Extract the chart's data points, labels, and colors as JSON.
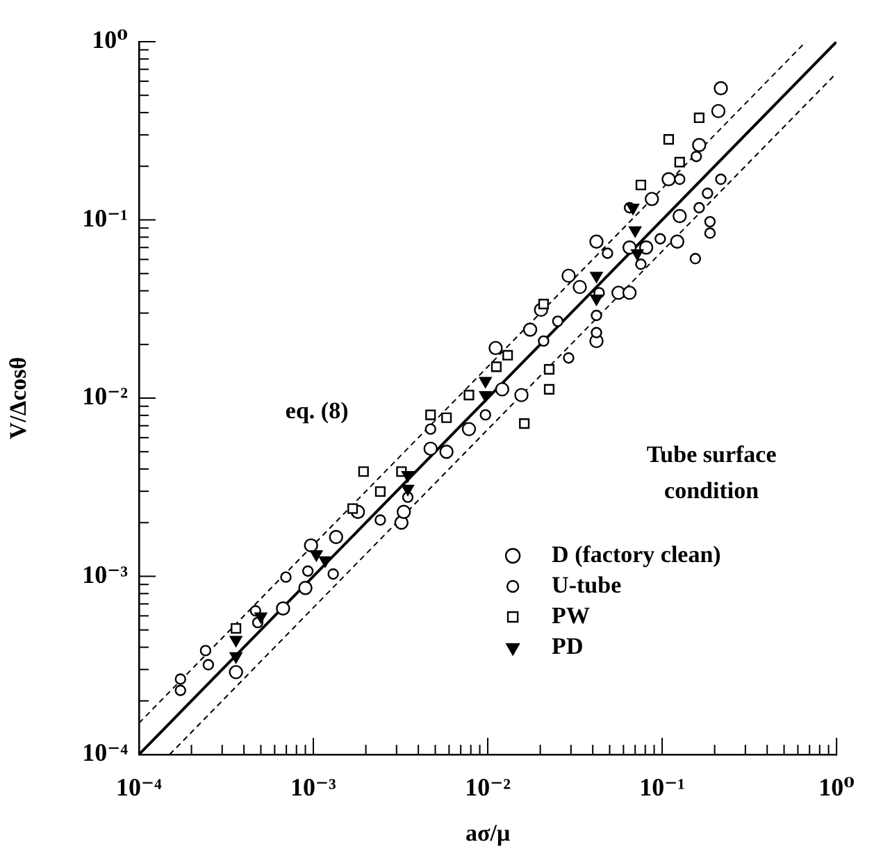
{
  "chart_data": {
    "type": "scatter",
    "xlabel": "aσ/μ",
    "ylabel": "V/Δcosθ",
    "legend_title": "Tube surface condition",
    "legend": "bottom right",
    "log": "xy",
    "grid": false,
    "xlim": [
      0.0001,
      1
    ],
    "ylim": [
      0.0001,
      1
    ],
    "xticks": [
      {
        "value": 0.0001,
        "label": "10⁻⁴"
      },
      {
        "value": 0.0002,
        "label": null
      },
      {
        "value": 0.0003,
        "label": null
      },
      {
        "value": 0.0004,
        "label": null
      },
      {
        "value": 0.0005,
        "label": null
      },
      {
        "value": 0.0006,
        "label": null
      },
      {
        "value": 0.0007,
        "label": null
      },
      {
        "value": 0.0008,
        "label": null
      },
      {
        "value": 0.0009,
        "label": null
      },
      {
        "value": 0.001,
        "label": "10⁻³"
      },
      {
        "value": 0.002,
        "label": null
      },
      {
        "value": 0.003,
        "label": null
      },
      {
        "value": 0.004,
        "label": null
      },
      {
        "value": 0.005,
        "label": null
      },
      {
        "value": 0.006,
        "label": null
      },
      {
        "value": 0.007,
        "label": null
      },
      {
        "value": 0.008,
        "label": null
      },
      {
        "value": 0.009,
        "label": null
      },
      {
        "value": 0.01,
        "label": "10⁻²"
      },
      {
        "value": 0.02,
        "label": null
      },
      {
        "value": 0.03,
        "label": null
      },
      {
        "value": 0.04,
        "label": null
      },
      {
        "value": 0.05,
        "label": null
      },
      {
        "value": 0.06,
        "label": null
      },
      {
        "value": 0.07,
        "label": null
      },
      {
        "value": 0.08,
        "label": null
      },
      {
        "value": 0.09,
        "label": null
      },
      {
        "value": 0.1,
        "label": "10⁻¹"
      },
      {
        "value": 0.2,
        "label": null
      },
      {
        "value": 0.3,
        "label": null
      },
      {
        "value": 0.4,
        "label": null
      },
      {
        "value": 0.5,
        "label": null
      },
      {
        "value": 0.6,
        "label": null
      },
      {
        "value": 0.7,
        "label": null
      },
      {
        "value": 0.8,
        "label": null
      },
      {
        "value": 0.9,
        "label": null
      },
      {
        "value": 1,
        "label": "10⁰"
      }
    ],
    "yticks": [
      {
        "value": 0.0001,
        "label": "10⁻⁴"
      },
      {
        "value": 0.0002,
        "label": null
      },
      {
        "value": 0.0003,
        "label": null
      },
      {
        "value": 0.0004,
        "label": null
      },
      {
        "value": 0.0005,
        "label": null
      },
      {
        "value": 0.0006,
        "label": null
      },
      {
        "value": 0.0007,
        "label": null
      },
      {
        "value": 0.0008,
        "label": null
      },
      {
        "value": 0.0009,
        "label": null
      },
      {
        "value": 0.001,
        "label": "10⁻³"
      },
      {
        "value": 0.002,
        "label": null
      },
      {
        "value": 0.003,
        "label": null
      },
      {
        "value": 0.004,
        "label": null
      },
      {
        "value": 0.005,
        "label": null
      },
      {
        "value": 0.006,
        "label": null
      },
      {
        "value": 0.007,
        "label": null
      },
      {
        "value": 0.008,
        "label": null
      },
      {
        "value": 0.009,
        "label": null
      },
      {
        "value": 0.01,
        "label": "10⁻²"
      },
      {
        "value": 0.02,
        "label": null
      },
      {
        "value": 0.03,
        "label": null
      },
      {
        "value": 0.04,
        "label": null
      },
      {
        "value": 0.05,
        "label": null
      },
      {
        "value": 0.06,
        "label": null
      },
      {
        "value": 0.07,
        "label": null
      },
      {
        "value": 0.08,
        "label": null
      },
      {
        "value": 0.09,
        "label": null
      },
      {
        "value": 0.1,
        "label": "10⁻¹"
      },
      {
        "value": 0.2,
        "label": null
      },
      {
        "value": 0.3,
        "label": null
      },
      {
        "value": 0.4,
        "label": null
      },
      {
        "value": 0.5,
        "label": null
      },
      {
        "value": 0.6,
        "label": null
      },
      {
        "value": 0.7,
        "label": null
      },
      {
        "value": 0.8,
        "label": null
      },
      {
        "value": 0.9,
        "label": null
      },
      {
        "value": 1,
        "label": "10⁰"
      }
    ],
    "annotations": [
      "eq. (8)"
    ],
    "series": [
      {
        "name": "D (factory clean)",
        "type": "scatter",
        "marker": "circle",
        "color": "#000000",
        "x": [
          0.00036,
          0.00097,
          0.0009,
          0.00067,
          0.0032,
          0.0033,
          0.0047,
          0.0058,
          0.0078,
          0.0121,
          0.0156,
          0.0111,
          0.0175,
          0.0202,
          0.0291,
          0.042,
          0.042,
          0.0562,
          0.0873,
          0.109,
          0.21,
          0.217,
          0.163,
          0.126,
          0.122,
          0.065,
          0.0337,
          0.0018,
          0.00135,
          0.081,
          0.065
        ],
        "values": [
          0.00029,
          0.00149,
          0.00086,
          0.00066,
          0.002,
          0.0023,
          0.0052,
          0.005,
          0.0067,
          0.0112,
          0.0104,
          0.0191,
          0.0242,
          0.0313,
          0.0486,
          0.0755,
          0.0209,
          0.039,
          0.131,
          0.169,
          0.408,
          0.548,
          0.263,
          0.105,
          0.0755,
          0.07,
          0.042,
          0.0023,
          0.00166,
          0.07,
          0.039
        ]
      },
      {
        "name": "U-tube",
        "type": "scatter",
        "marker": "circle",
        "color": "#000000",
        "x": [
          0.000173,
          0.000173,
          0.000241,
          0.00025,
          0.000466,
          0.00048,
          0.000696,
          0.0013,
          0.00242,
          0.00348,
          0.0097,
          0.0209,
          0.0252,
          0.0291,
          0.042,
          0.0435,
          0.0486,
          0.0755,
          0.0975,
          0.155,
          0.182,
          0.163,
          0.188,
          0.188,
          0.217,
          0.157,
          0.126,
          0.065,
          0.042,
          0.0047,
          0.00093
        ],
        "values": [
          0.000265,
          0.000229,
          0.000383,
          0.000319,
          0.00064,
          0.00055,
          0.00099,
          0.00103,
          0.00207,
          0.00278,
          0.00805,
          0.0209,
          0.027,
          0.0168,
          0.0291,
          0.039,
          0.065,
          0.0564,
          0.0783,
          0.0606,
          0.141,
          0.117,
          0.0977,
          0.0843,
          0.169,
          0.227,
          0.169,
          0.117,
          0.0233,
          0.0067,
          0.00107
        ]
      },
      {
        "name": "PW",
        "type": "scatter",
        "marker": "square",
        "color": "#000000",
        "x": [
          0.00194,
          0.00242,
          0.00168,
          0.0032,
          0.0047,
          0.0058,
          0.0078,
          0.0112,
          0.013,
          0.0162,
          0.0209,
          0.0225,
          0.0225,
          0.0755,
          0.109,
          0.126,
          0.163,
          0.00036
        ],
        "values": [
          0.00387,
          0.00299,
          0.0024,
          0.00387,
          0.00805,
          0.00776,
          0.0104,
          0.015,
          0.0174,
          0.0072,
          0.0337,
          0.0145,
          0.0112,
          0.157,
          0.283,
          0.211,
          0.374,
          0.00051
        ]
      },
      {
        "name": "PD",
        "type": "scatter",
        "marker": "triangle",
        "color": "#000000",
        "x": [
          0.00036,
          0.00036,
          0.00104,
          0.00117,
          0.00348,
          0.00348,
          0.0097,
          0.0097,
          0.042,
          0.042,
          0.068,
          0.07,
          0.072,
          0.0005
        ],
        "values": [
          0.00044,
          0.000356,
          0.00133,
          0.00123,
          0.0037,
          0.0031,
          0.0125,
          0.0104,
          0.0486,
          0.0362,
          0.117,
          0.0875,
          0.065,
          0.000596
        ]
      },
      {
        "type": "line",
        "line_style": "solid",
        "marker": "none",
        "color": "#000000",
        "x": [
          0.0001,
          1
        ],
        "values": [
          0.0001,
          1
        ]
      },
      {
        "type": "line",
        "line_style": "dashed",
        "marker": "none",
        "color": "#000000",
        "x": [
          0.0001,
          0.667
        ],
        "values": [
          0.00015,
          1
        ]
      },
      {
        "type": "line",
        "line_style": "dashed",
        "marker": "none",
        "color": "#000000",
        "x": [
          0.00015,
          1
        ],
        "values": [
          0.0001,
          0.667
        ]
      }
    ]
  }
}
